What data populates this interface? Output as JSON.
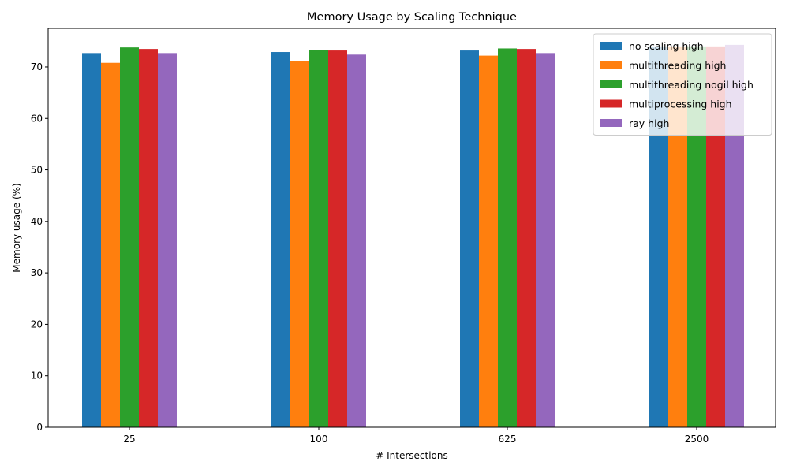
{
  "chart_data": {
    "type": "bar",
    "title": "Memory Usage by Scaling Technique",
    "xlabel": "# Intersections",
    "ylabel": "Memory usage (%)",
    "categories": [
      "25",
      "100",
      "625",
      "2500"
    ],
    "ylim": [
      0,
      77.5
    ],
    "yticks": [
      0,
      10,
      20,
      30,
      40,
      50,
      60,
      70
    ],
    "grid": false,
    "legend_position": "upper right",
    "series": [
      {
        "name": "no scaling high",
        "color": "#1f77b4",
        "values": [
          72.7,
          72.9,
          73.2,
          74.0
        ]
      },
      {
        "name": "multithreading high",
        "color": "#ff7f0e",
        "values": [
          70.8,
          71.2,
          72.2,
          74.0
        ]
      },
      {
        "name": "multithreading nogil high",
        "color": "#2ca02c",
        "values": [
          73.8,
          73.3,
          73.6,
          74.0
        ]
      },
      {
        "name": "multiprocessing high",
        "color": "#d62728",
        "values": [
          73.5,
          73.2,
          73.5,
          74.0
        ]
      },
      {
        "name": "ray high",
        "color": "#9467bd",
        "values": [
          72.7,
          72.4,
          72.7,
          74.3
        ]
      }
    ]
  }
}
